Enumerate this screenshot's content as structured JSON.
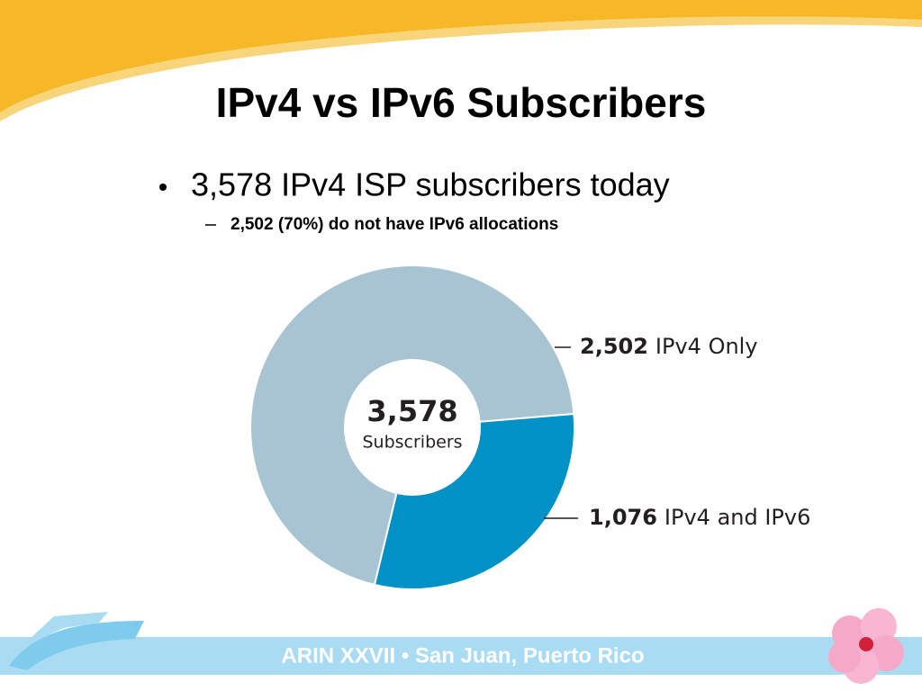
{
  "slide": {
    "title": "IPv4 vs IPv6 Subscribers",
    "bullet": "3,578 IPv4 ISP subscribers today",
    "sub_bullet": "2,502 (70%) do not have IPv6 allocations",
    "footer": "ARIN XXVII • San Juan, Puerto Rico"
  },
  "chart_data": {
    "type": "donut",
    "categories": [
      "IPv4 Only",
      "IPv4 and IPv6"
    ],
    "values": [
      2502,
      1076
    ],
    "value_labels": [
      "2,502",
      "1,076"
    ],
    "colors": [
      "#a8c4d3",
      "#0091c6"
    ],
    "center_value": "3,578",
    "center_label": "Subscribers"
  }
}
